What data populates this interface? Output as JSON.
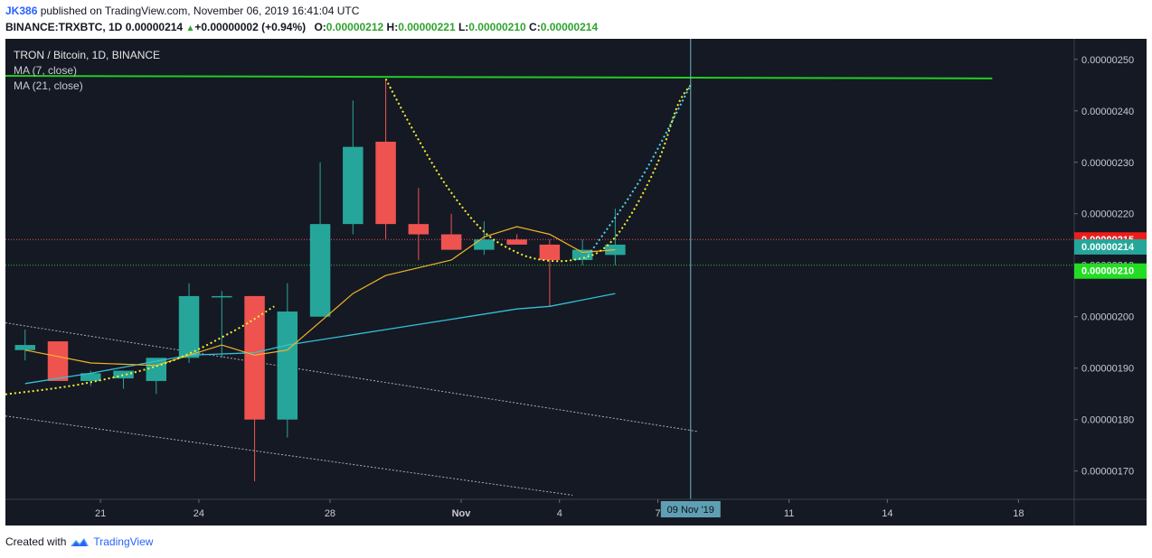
{
  "header": {
    "publisher": "JK386",
    "published_text": " published on TradingView.com, November 06, 2019 16:41:04 UTC",
    "symbol_line": "BINANCE:TRXBTC, 1D",
    "last": "0.00000214",
    "change": "+0.00000002 (+0.94%)",
    "open_label": "O:",
    "open": "0.00000212",
    "high_label": "H:",
    "high": "0.00000221",
    "low_label": "L:",
    "low": "0.00000210",
    "close_label": "C:",
    "close": "0.00000214"
  },
  "legend": {
    "title": "TRON / Bitcoin, 1D, BINANCE",
    "ma7": "MA (7, close)",
    "ma21": "MA (21, close)"
  },
  "footer": {
    "created_with": "Created with",
    "brand": "TradingView"
  },
  "colors": {
    "background": "#151924",
    "up": "#26a69a",
    "down": "#ef5350",
    "ma7": "#f0b429",
    "ma21": "#33c1d8",
    "resistance": "#22cc22",
    "arc": "#f5f032",
    "projection": "#4dd7ea"
  },
  "chart_data": {
    "type": "candlestick",
    "symbol": "TRXBTC",
    "interval": "1D",
    "y_range": [
      1.645e-06,
      2.54e-06
    ],
    "y_ticks": [
      "0.00000250",
      "0.00000240",
      "0.00000230",
      "0.00000220",
      "0.00000210",
      "0.00000200",
      "0.00000190",
      "0.00000180",
      "0.00000170"
    ],
    "x_ticks": [
      {
        "label": "21",
        "day": 21
      },
      {
        "label": "24",
        "day": 24
      },
      {
        "label": "28",
        "day": 28
      },
      {
        "label": "Nov",
        "day": 32
      },
      {
        "label": "4",
        "day": 35
      },
      {
        "label": "7",
        "day": 38
      },
      {
        "label": "11",
        "day": 42
      },
      {
        "label": "14",
        "day": 45
      },
      {
        "label": "18",
        "day": 49
      }
    ],
    "x_day_range": [
      18.1,
      50.7
    ],
    "note": "day index counts from Oct 1 (Nov 1 = 32)",
    "candles": [
      {
        "day": 18.7,
        "o": 1.935e-06,
        "h": 1.975e-06,
        "l": 1.915e-06,
        "c": 1.945e-06
      },
      {
        "day": 19.7,
        "o": 1.952e-06,
        "h": 1.952e-06,
        "l": 1.875e-06,
        "c": 1.875e-06
      },
      {
        "day": 20.7,
        "o": 1.875e-06,
        "h": 1.895e-06,
        "l": 1.865e-06,
        "c": 1.89e-06
      },
      {
        "day": 21.7,
        "o": 1.88e-06,
        "h": 1.895e-06,
        "l": 1.86e-06,
        "c": 1.895e-06
      },
      {
        "day": 22.7,
        "o": 1.875e-06,
        "h": 1.915e-06,
        "l": 1.85e-06,
        "c": 1.92e-06
      },
      {
        "day": 23.7,
        "o": 1.92e-06,
        "h": 2.065e-06,
        "l": 1.91e-06,
        "c": 2.04e-06
      },
      {
        "day": 24.7,
        "o": 2.04e-06,
        "h": 2.05e-06,
        "l": 1.92e-06,
        "c": 2.04e-06
      },
      {
        "day": 25.7,
        "o": 2.04e-06,
        "h": 2.04e-06,
        "l": 1.68e-06,
        "c": 1.8e-06
      },
      {
        "day": 26.7,
        "o": 1.8e-06,
        "h": 2.065e-06,
        "l": 1.765e-06,
        "c": 2.01e-06
      },
      {
        "day": 27.7,
        "o": 2e-06,
        "h": 2.3e-06,
        "l": 2e-06,
        "c": 2.18e-06
      },
      {
        "day": 28.7,
        "o": 2.18e-06,
        "h": 2.42e-06,
        "l": 2.16e-06,
        "c": 2.33e-06
      },
      {
        "day": 29.7,
        "o": 2.34e-06,
        "h": 2.46e-06,
        "l": 2.15e-06,
        "c": 2.18e-06
      },
      {
        "day": 30.7,
        "o": 2.18e-06,
        "h": 2.25e-06,
        "l": 2.11e-06,
        "c": 2.16e-06
      },
      {
        "day": 31.7,
        "o": 2.16e-06,
        "h": 2.2e-06,
        "l": 2.13e-06,
        "c": 2.13e-06
      },
      {
        "day": 32.7,
        "o": 2.13e-06,
        "h": 2.185e-06,
        "l": 2.12e-06,
        "c": 2.15e-06
      },
      {
        "day": 33.7,
        "o": 2.15e-06,
        "h": 2.16e-06,
        "l": 2.14e-06,
        "c": 2.14e-06
      },
      {
        "day": 34.7,
        "o": 2.14e-06,
        "h": 2.15e-06,
        "l": 2.02e-06,
        "c": 2.11e-06
      },
      {
        "day": 35.7,
        "o": 2.11e-06,
        "h": 2.15e-06,
        "l": 2.1e-06,
        "c": 2.13e-06
      },
      {
        "day": 36.7,
        "o": 2.12e-06,
        "h": 2.21e-06,
        "l": 2.1e-06,
        "c": 2.14e-06
      }
    ],
    "ma7": [
      {
        "day": 18.7,
        "v": 1.935e-06
      },
      {
        "day": 20.7,
        "v": 1.91e-06
      },
      {
        "day": 22.7,
        "v": 1.905e-06
      },
      {
        "day": 23.7,
        "v": 1.925e-06
      },
      {
        "day": 24.7,
        "v": 1.945e-06
      },
      {
        "day": 25.7,
        "v": 1.925e-06
      },
      {
        "day": 26.7,
        "v": 1.935e-06
      },
      {
        "day": 27.7,
        "v": 1.99e-06
      },
      {
        "day": 28.7,
        "v": 2.045e-06
      },
      {
        "day": 29.7,
        "v": 2.08e-06
      },
      {
        "day": 30.7,
        "v": 2.095e-06
      },
      {
        "day": 31.7,
        "v": 2.11e-06
      },
      {
        "day": 32.7,
        "v": 2.155e-06
      },
      {
        "day": 33.7,
        "v": 2.175e-06
      },
      {
        "day": 34.7,
        "v": 2.16e-06
      },
      {
        "day": 35.7,
        "v": 2.125e-06
      },
      {
        "day": 36.7,
        "v": 2.13e-06
      }
    ],
    "ma21": [
      {
        "day": 18.7,
        "v": 1.87e-06
      },
      {
        "day": 20.7,
        "v": 1.89e-06
      },
      {
        "day": 23.7,
        "v": 1.925e-06
      },
      {
        "day": 25.7,
        "v": 1.93e-06
      },
      {
        "day": 26.7,
        "v": 1.945e-06
      },
      {
        "day": 27.7,
        "v": 1.955e-06
      },
      {
        "day": 29.7,
        "v": 1.975e-06
      },
      {
        "day": 31.7,
        "v": 1.995e-06
      },
      {
        "day": 33.7,
        "v": 2.015e-06
      },
      {
        "day": 34.7,
        "v": 2.02e-06
      },
      {
        "day": 36.7,
        "v": 2.045e-06
      }
    ],
    "price_levels": [
      {
        "value": 2.15e-06,
        "label": "0.00000215",
        "style": "dotted",
        "color": "#ef5350",
        "tag_bg": "#ef1c1c"
      },
      {
        "value": 2.14e-06,
        "label": "0.00000214",
        "style": "none",
        "color": "#26a69a",
        "tag_bg": "#26a69a"
      },
      {
        "value": 2.1e-06,
        "label": "0.00000210",
        "style": "dotted",
        "color": "#22cc22",
        "tag_bg": "#22dd22"
      }
    ],
    "resistance_line": {
      "from": {
        "day": 18.1,
        "v": 2.468e-06
      },
      "to": {
        "day": 48.2,
        "v": 2.463e-06
      }
    },
    "channel_lines": [
      {
        "from": {
          "day": 18.1,
          "v": 1.988e-06
        },
        "to": {
          "day": 39.2,
          "v": 1.777e-06
        }
      },
      {
        "from": {
          "day": 18.1,
          "v": 1.807e-06
        },
        "to": {
          "day": 35.4,
          "v": 1.653e-06
        }
      }
    ],
    "rising_curve": [
      {
        "day": 18.1,
        "v": 1.849e-06
      },
      {
        "day": 20.5,
        "v": 1.87e-06
      },
      {
        "day": 23.0,
        "v": 1.91e-06
      },
      {
        "day": 25.0,
        "v": 1.97e-06
      },
      {
        "day": 26.3,
        "v": 2.02e-06
      }
    ],
    "cup_arc": [
      {
        "day": 29.7,
        "v": 2.462e-06
      },
      {
        "day": 30.6,
        "v": 2.355e-06
      },
      {
        "day": 31.6,
        "v": 2.25e-06
      },
      {
        "day": 32.7,
        "v": 2.165e-06
      },
      {
        "day": 33.7,
        "v": 2.125e-06
      },
      {
        "day": 34.5,
        "v": 2.11e-06
      },
      {
        "day": 35.4,
        "v": 2.11e-06
      },
      {
        "day": 36.3,
        "v": 2.13e-06
      },
      {
        "day": 37.1,
        "v": 2.19e-06
      },
      {
        "day": 38.0,
        "v": 2.3e-06
      },
      {
        "day": 38.6,
        "v": 2.41e-06
      },
      {
        "day": 39.0,
        "v": 2.45e-06
      }
    ],
    "projection": [
      {
        "day": 35.8,
        "v": 2.112e-06
      },
      {
        "day": 37.5,
        "v": 2.27e-06
      },
      {
        "day": 39.0,
        "v": 2.45e-06
      }
    ],
    "crosshair": {
      "day": 39.0,
      "label": "09 Nov '19"
    }
  }
}
